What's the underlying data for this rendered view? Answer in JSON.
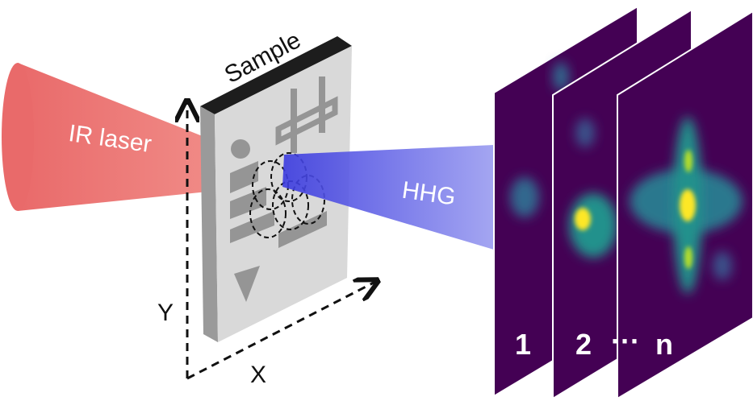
{
  "labels": {
    "sample": "Sample",
    "ir_laser": "IR laser",
    "hhg": "HHG",
    "y_axis": "Y",
    "x_axis": "X"
  },
  "frames": [
    "1",
    "2",
    "n"
  ],
  "ellipsis": "···"
}
